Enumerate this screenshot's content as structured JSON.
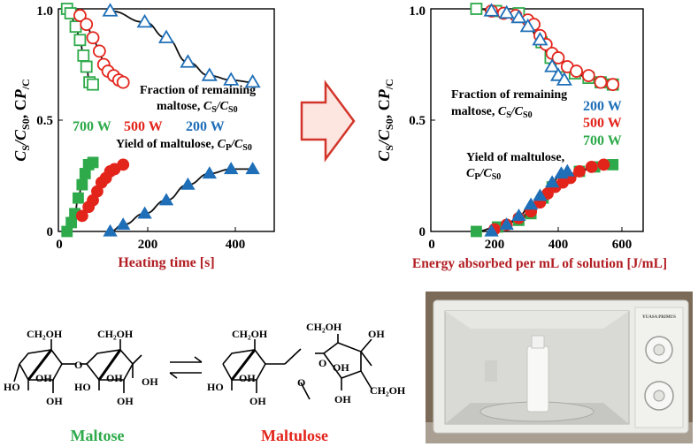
{
  "colors": {
    "s700": "#2eaa4a",
    "s500": "#e3241b",
    "s200": "#1f6fb8",
    "fit": "#111111",
    "axis_label_red": "#b21e23",
    "arrow_fill": "#fde5e0",
    "arrow_stroke": "#d2352a"
  },
  "chart_data": [
    {
      "type": "scatter",
      "xlabel": "Heating time [s]",
      "ylabel_parts": [
        "C",
        "S",
        "/C",
        "S0",
        ",  C",
        "P",
        "/C",
        "S0"
      ],
      "xlim": [
        0,
        500
      ],
      "ylim": [
        0,
        1.0
      ],
      "xticks": [
        "0",
        "200",
        "400"
      ],
      "yticks": [
        "0",
        "0.5",
        "1.0"
      ],
      "annotations": {
        "remaining_line1": "Fraction of remaining",
        "remaining_line2": "maltose, ",
        "remaining_var": [
          "C",
          "S",
          "/C",
          "S0"
        ],
        "yield_line": "Yield of maltulose, ",
        "yield_var": [
          "C",
          "P",
          "/C",
          "S0"
        ]
      },
      "legend": [
        "700 W",
        "500 W",
        "200 W"
      ],
      "series": [
        {
          "name": "700 W",
          "kind": "remaining",
          "marker": "square-open",
          "color": "#2eaa4a",
          "x": [
            20,
            28,
            40,
            50,
            58,
            65,
            72,
            80
          ],
          "y": [
            1.0,
            0.98,
            0.92,
            0.86,
            0.79,
            0.74,
            0.67,
            0.66
          ]
        },
        {
          "name": "500 W",
          "kind": "remaining",
          "marker": "circle-open",
          "color": "#e3241b",
          "x": [
            50,
            65,
            80,
            95,
            105,
            115,
            128,
            140,
            150
          ],
          "y": [
            0.97,
            0.93,
            0.87,
            0.81,
            0.75,
            0.72,
            0.7,
            0.68,
            0.67
          ]
        },
        {
          "name": "200 W",
          "kind": "remaining",
          "marker": "triangle-open",
          "color": "#1f6fb8",
          "x": [
            120,
            200,
            250,
            300,
            350,
            400,
            450
          ],
          "y": [
            0.99,
            0.94,
            0.87,
            0.76,
            0.7,
            0.68,
            0.67
          ]
        },
        {
          "name": "700 W",
          "kind": "yield",
          "marker": "square-filled",
          "color": "#2eaa4a",
          "x": [
            20,
            30,
            38,
            46,
            55,
            62,
            70,
            80
          ],
          "y": [
            0.0,
            0.04,
            0.08,
            0.15,
            0.21,
            0.26,
            0.3,
            0.31
          ]
        },
        {
          "name": "500 W",
          "kind": "yield",
          "marker": "circle-filled",
          "color": "#e3241b",
          "x": [
            55,
            70,
            80,
            90,
            100,
            110,
            120,
            130,
            150
          ],
          "y": [
            0.07,
            0.11,
            0.14,
            0.18,
            0.22,
            0.24,
            0.27,
            0.28,
            0.3
          ]
        },
        {
          "name": "200 W",
          "kind": "yield",
          "marker": "triangle-filled",
          "color": "#1f6fb8",
          "x": [
            120,
            150,
            200,
            250,
            300,
            350,
            400,
            450
          ],
          "y": [
            0.0,
            0.03,
            0.08,
            0.14,
            0.21,
            0.26,
            0.28,
            0.28
          ]
        }
      ]
    },
    {
      "type": "scatter",
      "xlabel": "Energy absorbed per mL of solution [J/mL]",
      "ylabel_parts": [
        "C",
        "S",
        "/C",
        "S0",
        ",  C",
        "P",
        "/C",
        "S0"
      ],
      "xlim": [
        0,
        700
      ],
      "ylim": [
        0,
        1.0
      ],
      "xticks": [
        "0",
        "200",
        "400",
        "600"
      ],
      "yticks": [
        "0",
        "0.5",
        "1.0"
      ],
      "annotations": {
        "remaining_line1": "Fraction of remaining",
        "remaining_line2": "maltose, ",
        "remaining_var": [
          "C",
          "S",
          "/C",
          "S0"
        ],
        "yield_line1": "Yield of maltulose,",
        "yield_var": [
          "C",
          "P",
          "/C",
          "S0"
        ]
      },
      "legend": [
        "200 W",
        "500 W",
        "700 W"
      ],
      "series": [
        {
          "name": "700 W",
          "kind": "remaining",
          "marker": "square-open",
          "color": "#2eaa4a",
          "x": [
            150,
            215,
            290,
            330,
            365,
            395,
            430,
            475,
            520,
            560,
            600
          ],
          "y": [
            1.0,
            0.99,
            0.98,
            0.93,
            0.85,
            0.78,
            0.74,
            0.71,
            0.69,
            0.67,
            0.66
          ]
        },
        {
          "name": "500 W",
          "kind": "remaining",
          "marker": "circle-open",
          "color": "#e3241b",
          "x": [
            200,
            240,
            280,
            320,
            340,
            360,
            380,
            400,
            420,
            450,
            480,
            520,
            560,
            600
          ],
          "y": [
            0.99,
            0.98,
            0.97,
            0.95,
            0.93,
            0.88,
            0.84,
            0.8,
            0.78,
            0.74,
            0.72,
            0.7,
            0.67,
            0.66
          ]
        },
        {
          "name": "200 W",
          "kind": "remaining",
          "marker": "triangle-open",
          "color": "#1f6fb8",
          "x": [
            200,
            250,
            290,
            320,
            360,
            400,
            420,
            440
          ],
          "y": [
            0.99,
            0.98,
            0.96,
            0.92,
            0.86,
            0.74,
            0.7,
            0.68
          ]
        },
        {
          "name": "700 W",
          "kind": "yield",
          "marker": "square-filled",
          "color": "#2eaa4a",
          "x": [
            150,
            220,
            290,
            330,
            370,
            400,
            450,
            490,
            540,
            600
          ],
          "y": [
            0.0,
            0.02,
            0.05,
            0.08,
            0.15,
            0.2,
            0.24,
            0.27,
            0.29,
            0.3
          ]
        },
        {
          "name": "500 W",
          "kind": "yield",
          "marker": "circle-filled",
          "color": "#e3241b",
          "x": [
            210,
            250,
            290,
            330,
            360,
            385,
            410,
            435,
            460,
            490,
            530,
            570
          ],
          "y": [
            0.01,
            0.03,
            0.06,
            0.09,
            0.13,
            0.17,
            0.2,
            0.22,
            0.24,
            0.27,
            0.29,
            0.3
          ]
        },
        {
          "name": "200 W",
          "kind": "yield",
          "marker": "triangle-filled",
          "color": "#1f6fb8",
          "x": [
            200,
            250,
            290,
            330,
            360,
            400,
            430,
            450
          ],
          "y": [
            0.0,
            0.03,
            0.07,
            0.12,
            0.16,
            0.22,
            0.26,
            0.27
          ]
        }
      ]
    }
  ],
  "chemistry": {
    "maltose_name": "Maltose",
    "maltulose_name": "Maltulose",
    "ch2oh": "CH₂OH",
    "oh": "OH",
    "ho": "HO",
    "o": "O",
    "equilibrium": "⇄"
  },
  "photo": {
    "brand": "YUASA PRIMUS",
    "description": "microwave oven"
  }
}
